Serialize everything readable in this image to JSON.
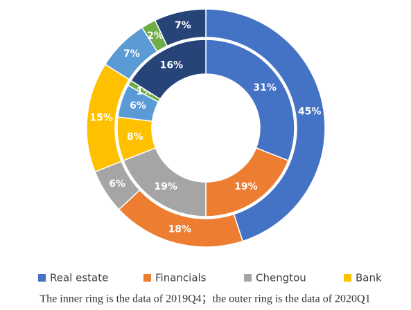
{
  "chart_data": {
    "type": "donut",
    "categories": [
      "Real estate",
      "Financials",
      "Chengtou",
      "Bank",
      null,
      null,
      null
    ],
    "colors": [
      "#4472c4",
      "#ed7d31",
      "#a5a5a5",
      "#ffc000",
      "#5b9bd5",
      "#70ad47",
      "#264478"
    ],
    "series": [
      {
        "values": [
          31,
          19,
          19,
          8,
          6,
          1,
          16
        ],
        "value_labels": [
          "31%",
          "19%",
          "19%",
          "8%",
          "6%",
          "1%",
          "16%"
        ]
      },
      {
        "values": [
          45,
          18,
          6,
          15,
          7,
          2,
          7
        ],
        "value_labels": [
          "45%",
          "18%",
          "6%",
          "15%",
          "7%",
          "2%",
          "7%"
        ]
      }
    ],
    "caption": "The inner ring is the data of 2019Q4；the outer ring is the data of 2020Q1"
  }
}
